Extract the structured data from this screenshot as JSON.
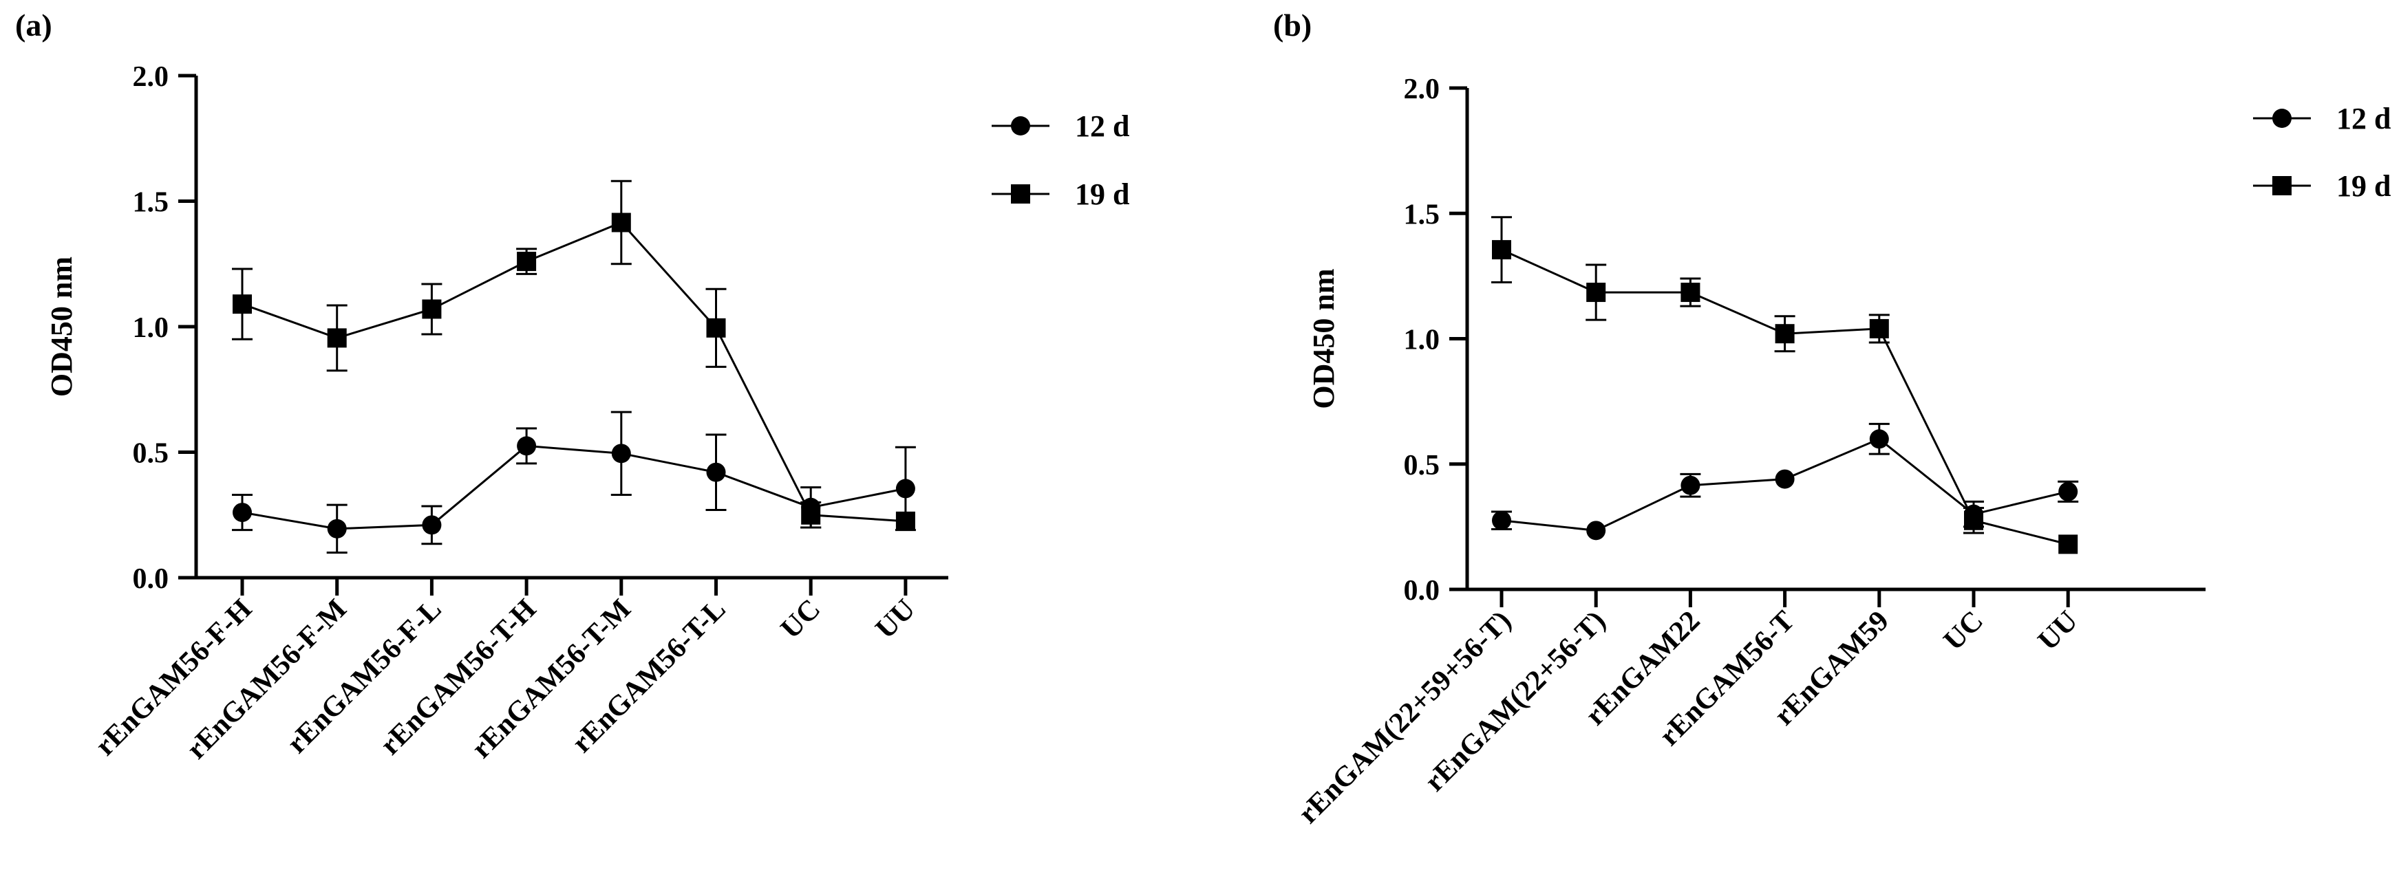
{
  "chart_data": [
    {
      "panel_label": "(a)",
      "type": "line",
      "ylabel": "OD450 nm",
      "xlabel": "",
      "ylim": [
        0,
        2.0
      ],
      "yticks": [
        "0.0",
        "0.5",
        "1.0",
        "1.5",
        "2.0"
      ],
      "categories": [
        "rEnGAM56-F-H",
        "rEnGAM56-F-M",
        "rEnGAM56-F-L",
        "rEnGAM56-T-H",
        "rEnGAM56-T-M",
        "rEnGAM56-T-L",
        "UC",
        "UU"
      ],
      "legend_position": "top-right",
      "series": [
        {
          "name": "12 d",
          "marker": "circle",
          "values": [
            0.26,
            0.195,
            0.21,
            0.525,
            0.495,
            0.42,
            0.28,
            0.355
          ],
          "errors": [
            0.07,
            0.095,
            0.075,
            0.07,
            0.165,
            0.15,
            0.08,
            0.165
          ]
        },
        {
          "name": "19 d",
          "marker": "square",
          "values": [
            1.09,
            0.955,
            1.07,
            1.26,
            1.415,
            0.995,
            0.25,
            0.225
          ],
          "errors": [
            0.14,
            0.13,
            0.1,
            0.05,
            0.165,
            0.155,
            0.05,
            0.0
          ]
        }
      ]
    },
    {
      "panel_label": "(b)",
      "type": "line",
      "ylabel": "OD450 nm",
      "xlabel": "",
      "ylim": [
        0,
        2.0
      ],
      "yticks": [
        "0.0",
        "0.5",
        "1.0",
        "1.5",
        "2.0"
      ],
      "categories": [
        "rEnGAM(22+59+56-T)",
        "rEnGAM(22+56-T)",
        "rEnGAM22",
        "rEnGAM56-T",
        "rEnGAM59",
        "UC",
        "UU"
      ],
      "legend_position": "top-right",
      "series": [
        {
          "name": "12 d",
          "marker": "circle",
          "values": [
            0.275,
            0.235,
            0.415,
            0.44,
            0.6,
            0.3,
            0.39
          ],
          "errors": [
            0.035,
            0.0,
            0.045,
            0.0,
            0.06,
            0.05,
            0.04
          ]
        },
        {
          "name": "19 d",
          "marker": "square",
          "values": [
            1.355,
            1.185,
            1.185,
            1.02,
            1.04,
            0.275,
            0.18
          ],
          "errors": [
            0.13,
            0.11,
            0.055,
            0.07,
            0.055,
            0.05,
            0.0
          ]
        }
      ]
    }
  ]
}
